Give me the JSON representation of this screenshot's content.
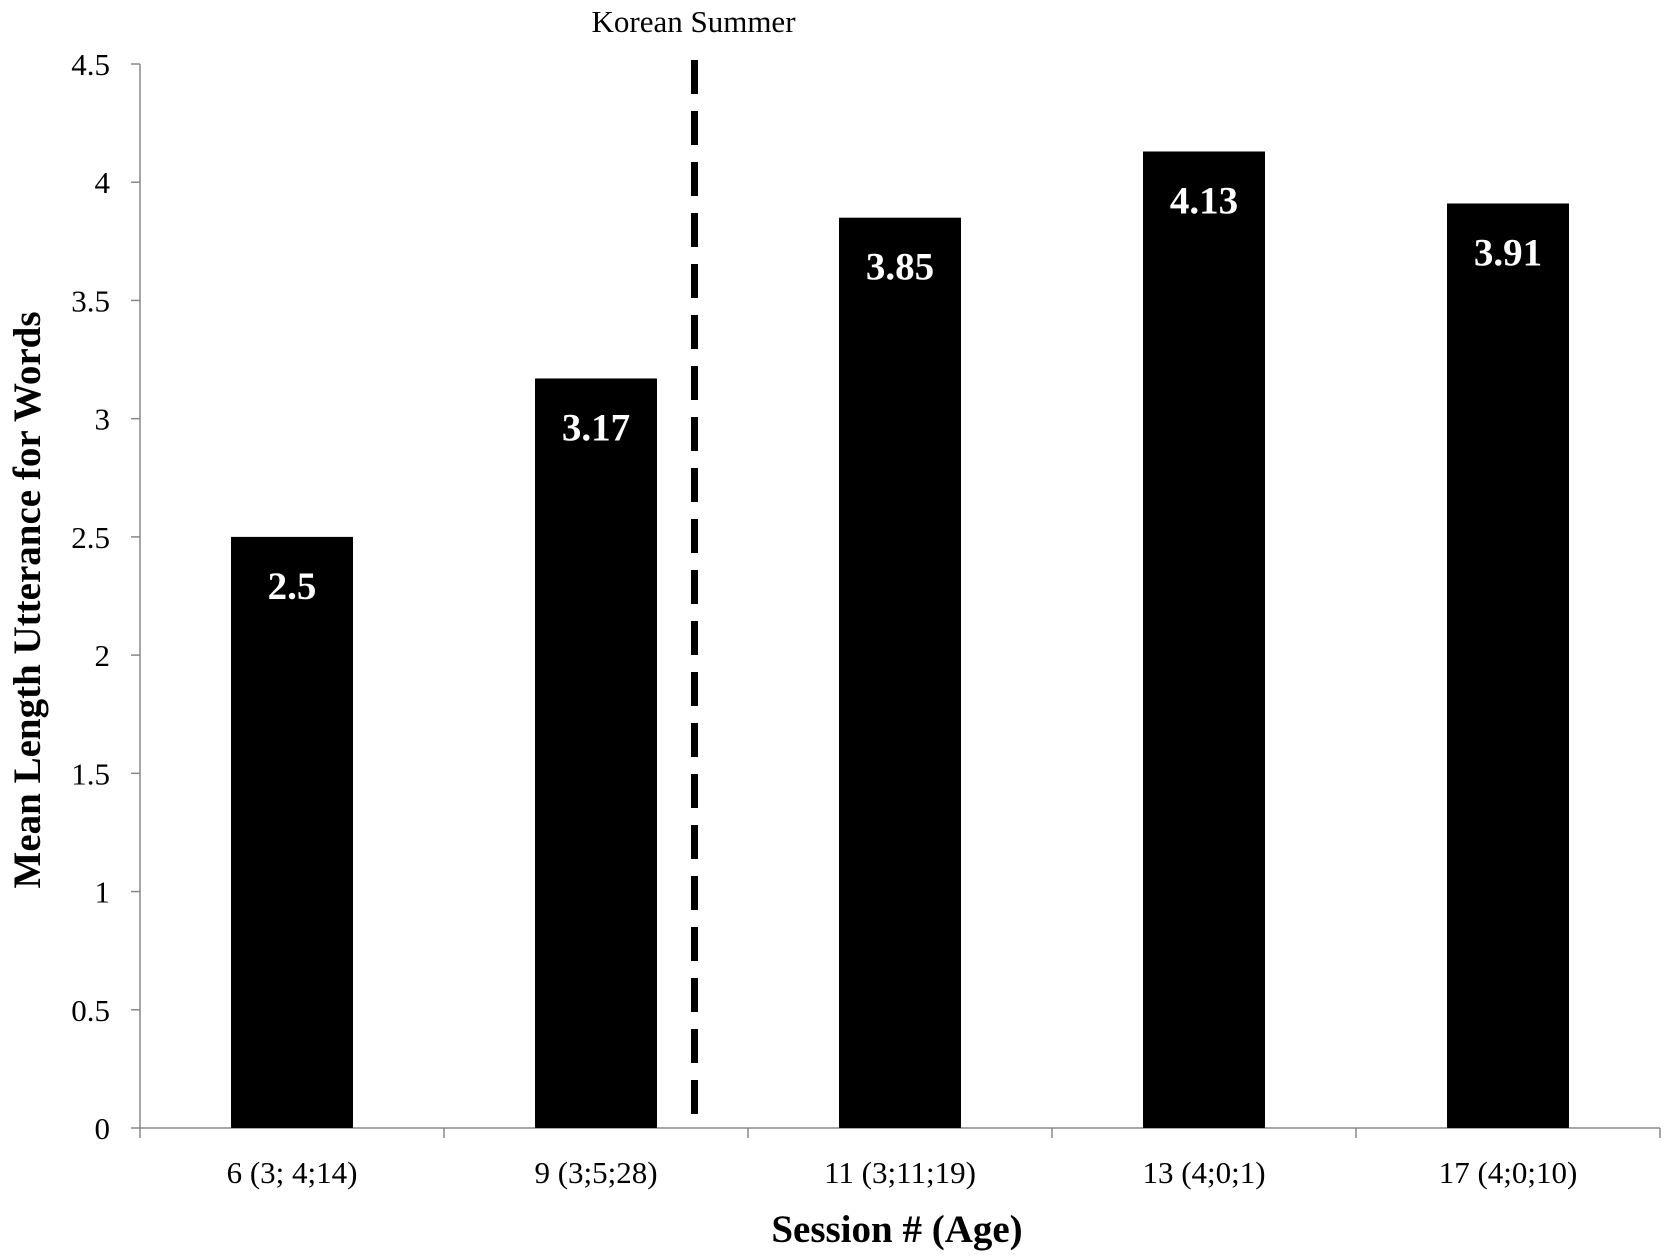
{
  "chart_data": {
    "type": "bar",
    "title": "",
    "xlabel": "Session # (Age)",
    "ylabel": "Mean Length Utterance for Words",
    "categories": [
      "6 (3; 4;14)",
      "9 (3;5;28)",
      "11 (3;11;19)",
      "13 (4;0;1)",
      "17 (4;0;10)"
    ],
    "values": [
      2.5,
      3.17,
      3.85,
      4.13,
      3.91
    ],
    "data_labels": [
      "2.5",
      "3.17",
      "3.85",
      "4.13",
      "3.91"
    ],
    "ylim": [
      0,
      4.5
    ],
    "yticks": [
      0,
      0.5,
      1,
      1.5,
      2,
      2.5,
      3,
      3.5,
      4,
      4.5
    ],
    "ytick_labels": [
      "0",
      "0.5",
      "1",
      "1.5",
      "2",
      "2.5",
      "3",
      "3.5",
      "4",
      "4.5"
    ],
    "grid": false,
    "legend": "none",
    "bar_color": "#000000",
    "label_color": "#ffffff",
    "axis_color": "#888888",
    "annotations": [
      {
        "text": "Korean Summer",
        "type": "dashed-vertical-line",
        "after_category_index": 1
      }
    ]
  }
}
